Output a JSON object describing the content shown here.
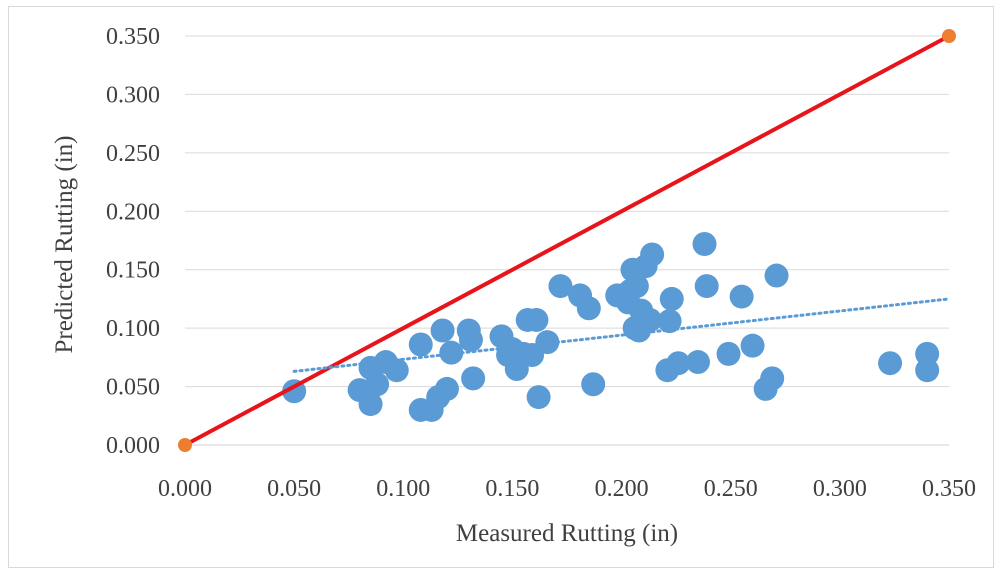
{
  "chart_data": {
    "type": "scatter",
    "title": "",
    "xlabel": "Measured Rutting (in)",
    "ylabel": "Predicted Rutting (in)",
    "xlim": [
      0,
      0.35
    ],
    "ylim": [
      0,
      0.35
    ],
    "x_ticks": [
      "0.000",
      "0.050",
      "0.100",
      "0.150",
      "0.200",
      "0.250",
      "0.300",
      "0.350"
    ],
    "y_ticks": [
      "0.000",
      "0.050",
      "0.100",
      "0.150",
      "0.200",
      "0.250",
      "0.300",
      "0.350"
    ],
    "grid": "horizontal",
    "legend": "none",
    "colors": {
      "points": "#5b9bd5",
      "equality_line": "#e8141c",
      "equality_endpoints": "#ed7d31",
      "trendline": "#5b9bd5",
      "gridline": "#d9d9d9"
    },
    "series": [
      {
        "type": "scatter",
        "points": [
          [
            0.05,
            0.046
          ],
          [
            0.08,
            0.047
          ],
          [
            0.085,
            0.066
          ],
          [
            0.085,
            0.035
          ],
          [
            0.088,
            0.052
          ],
          [
            0.092,
            0.071
          ],
          [
            0.097,
            0.064
          ],
          [
            0.108,
            0.086
          ],
          [
            0.108,
            0.03
          ],
          [
            0.113,
            0.03
          ],
          [
            0.116,
            0.041
          ],
          [
            0.118,
            0.098
          ],
          [
            0.12,
            0.048
          ],
          [
            0.122,
            0.079
          ],
          [
            0.13,
            0.098
          ],
          [
            0.131,
            0.09
          ],
          [
            0.132,
            0.057
          ],
          [
            0.145,
            0.093
          ],
          [
            0.148,
            0.077
          ],
          [
            0.15,
            0.082
          ],
          [
            0.152,
            0.065
          ],
          [
            0.155,
            0.078
          ],
          [
            0.157,
            0.107
          ],
          [
            0.159,
            0.077
          ],
          [
            0.161,
            0.107
          ],
          [
            0.162,
            0.041
          ],
          [
            0.166,
            0.088
          ],
          [
            0.172,
            0.136
          ],
          [
            0.181,
            0.128
          ],
          [
            0.185,
            0.117
          ],
          [
            0.187,
            0.052
          ],
          [
            0.198,
            0.128
          ],
          [
            0.203,
            0.122
          ],
          [
            0.204,
            0.132
          ],
          [
            0.205,
            0.15
          ],
          [
            0.206,
            0.1
          ],
          [
            0.207,
            0.136
          ],
          [
            0.208,
            0.098
          ],
          [
            0.209,
            0.115
          ],
          [
            0.211,
            0.153
          ],
          [
            0.213,
            0.107
          ],
          [
            0.214,
            0.163
          ],
          [
            0.221,
            0.064
          ],
          [
            0.222,
            0.106
          ],
          [
            0.223,
            0.125
          ],
          [
            0.226,
            0.07
          ],
          [
            0.235,
            0.071
          ],
          [
            0.238,
            0.172
          ],
          [
            0.239,
            0.136
          ],
          [
            0.249,
            0.078
          ],
          [
            0.255,
            0.127
          ],
          [
            0.26,
            0.085
          ],
          [
            0.266,
            0.048
          ],
          [
            0.269,
            0.057
          ],
          [
            0.271,
            0.145
          ],
          [
            0.323,
            0.07
          ],
          [
            0.34,
            0.078
          ],
          [
            0.34,
            0.064
          ]
        ]
      },
      {
        "type": "line",
        "role": "equality",
        "points": [
          [
            0.0,
            0.0
          ],
          [
            0.35,
            0.35
          ]
        ]
      },
      {
        "type": "trendline",
        "style": "dotted",
        "points": [
          [
            0.05,
            0.063
          ],
          [
            0.35,
            0.125
          ]
        ]
      }
    ]
  }
}
